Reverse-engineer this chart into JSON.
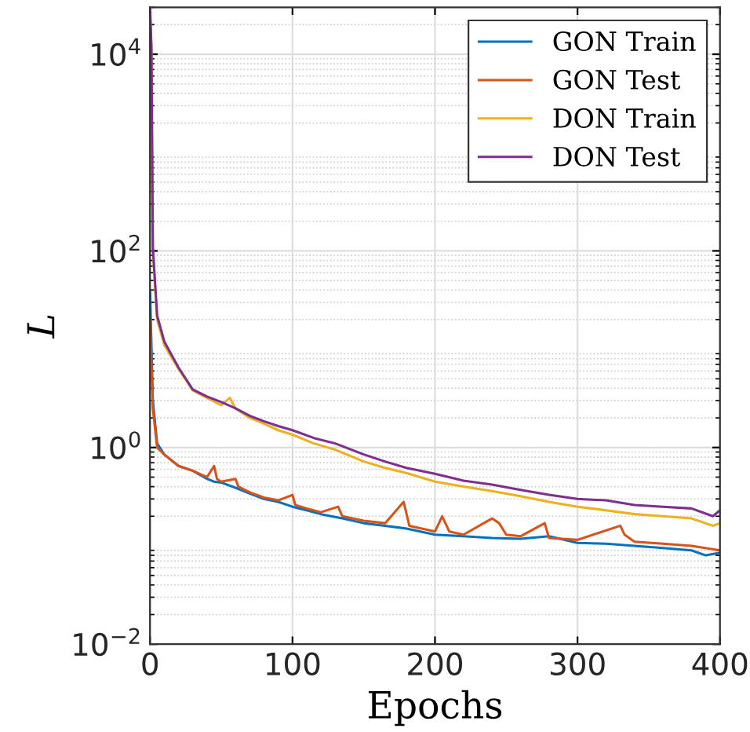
{
  "chart_data": {
    "type": "line",
    "xlabel": "Epochs",
    "ylabel": "L",
    "log": "y",
    "grid": true,
    "legend": "top right",
    "xlim": [
      0,
      400
    ],
    "xticks": [
      0,
      100,
      200,
      300,
      400
    ],
    "ylim": [
      0.01,
      30000
    ],
    "yticks": [
      {
        "value": 0.01,
        "label": "10$^{−2}$"
      },
      {
        "value": 1,
        "label": "10$^{0}$"
      },
      {
        "value": 100,
        "label": "10$^{2}$"
      },
      {
        "value": 10000,
        "label": "10$^{4}$"
      }
    ],
    "series": [
      {
        "name": "GON Train",
        "color": "#0072bd",
        "x": [
          0,
          2,
          5,
          10,
          20,
          30,
          40,
          45,
          50,
          60,
          70,
          80,
          90,
          100,
          110,
          120,
          135,
          150,
          165,
          180,
          200,
          220,
          240,
          260,
          280,
          300,
          320,
          340,
          360,
          380,
          390,
          400
        ],
        "values": [
          40,
          3,
          1.1,
          0.85,
          0.65,
          0.58,
          0.48,
          0.45,
          0.44,
          0.39,
          0.34,
          0.3,
          0.28,
          0.25,
          0.23,
          0.21,
          0.19,
          0.17,
          0.16,
          0.15,
          0.13,
          0.125,
          0.12,
          0.118,
          0.125,
          0.107,
          0.105,
          0.1,
          0.095,
          0.09,
          0.08,
          0.085
        ]
      },
      {
        "name": "GON Test",
        "color": "#d95319",
        "x": [
          0,
          2,
          5,
          10,
          20,
          30,
          40,
          45,
          47,
          50,
          60,
          62,
          70,
          80,
          90,
          100,
          102,
          110,
          120,
          132,
          135,
          150,
          165,
          175,
          178,
          182,
          200,
          205,
          210,
          220,
          240,
          245,
          250,
          260,
          277,
          280,
          300,
          330,
          333,
          340,
          360,
          380,
          400
        ],
        "values": [
          20,
          2.5,
          1.0,
          0.85,
          0.65,
          0.58,
          0.5,
          0.65,
          0.48,
          0.45,
          0.48,
          0.4,
          0.35,
          0.31,
          0.29,
          0.33,
          0.26,
          0.24,
          0.22,
          0.25,
          0.2,
          0.18,
          0.17,
          0.25,
          0.28,
          0.16,
          0.14,
          0.2,
          0.14,
          0.13,
          0.19,
          0.17,
          0.13,
          0.125,
          0.17,
          0.12,
          0.115,
          0.16,
          0.13,
          0.11,
          0.105,
          0.1,
          0.09
        ]
      },
      {
        "name": "DON Train",
        "color": "#edb120",
        "x": [
          0,
          1,
          2,
          5,
          10,
          20,
          30,
          40,
          50,
          56,
          60,
          70,
          80,
          90,
          100,
          115,
          130,
          150,
          165,
          180,
          200,
          220,
          240,
          260,
          280,
          300,
          320,
          340,
          360,
          380,
          395,
          400
        ],
        "values": [
          30000,
          10000,
          100,
          20,
          11,
          6.3,
          3.8,
          3.2,
          2.7,
          3.2,
          2.5,
          2.0,
          1.75,
          1.5,
          1.35,
          1.1,
          0.95,
          0.72,
          0.62,
          0.55,
          0.45,
          0.4,
          0.36,
          0.32,
          0.28,
          0.25,
          0.23,
          0.21,
          0.2,
          0.19,
          0.16,
          0.17
        ]
      },
      {
        "name": "DON Test",
        "color": "#7e2f8e",
        "x": [
          0,
          1,
          2,
          5,
          10,
          20,
          30,
          40,
          50,
          60,
          70,
          80,
          90,
          100,
          115,
          130,
          150,
          165,
          180,
          200,
          220,
          240,
          260,
          280,
          300,
          320,
          340,
          360,
          380,
          395,
          400
        ],
        "values": [
          30000,
          12000,
          110,
          22,
          12,
          6.5,
          3.9,
          3.3,
          2.9,
          2.5,
          2.1,
          1.85,
          1.65,
          1.5,
          1.25,
          1.1,
          0.85,
          0.72,
          0.62,
          0.54,
          0.46,
          0.42,
          0.37,
          0.33,
          0.3,
          0.29,
          0.26,
          0.25,
          0.24,
          0.2,
          0.23
        ]
      }
    ]
  }
}
